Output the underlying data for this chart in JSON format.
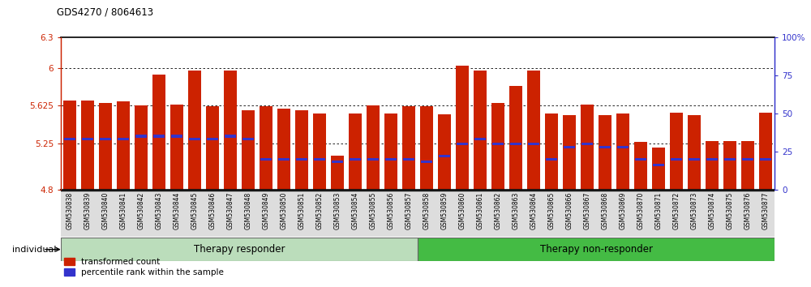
{
  "title": "GDS4270 / 8064613",
  "samples": [
    "GSM530838",
    "GSM530839",
    "GSM530840",
    "GSM530841",
    "GSM530842",
    "GSM530843",
    "GSM530844",
    "GSM530845",
    "GSM530846",
    "GSM530847",
    "GSM530848",
    "GSM530849",
    "GSM530850",
    "GSM530851",
    "GSM530852",
    "GSM530853",
    "GSM530854",
    "GSM530855",
    "GSM530856",
    "GSM530857",
    "GSM530858",
    "GSM530859",
    "GSM530860",
    "GSM530861",
    "GSM530862",
    "GSM530863",
    "GSM530864",
    "GSM530865",
    "GSM530866",
    "GSM530867",
    "GSM530868",
    "GSM530869",
    "GSM530870",
    "GSM530871",
    "GSM530872",
    "GSM530873",
    "GSM530874",
    "GSM530875",
    "GSM530876",
    "GSM530877"
  ],
  "red_values": [
    5.68,
    5.68,
    5.65,
    5.67,
    5.63,
    5.93,
    5.64,
    5.97,
    5.62,
    5.97,
    5.58,
    5.62,
    5.6,
    5.58,
    5.55,
    5.13,
    5.55,
    5.63,
    5.55,
    5.62,
    5.62,
    5.54,
    6.02,
    5.97,
    5.65,
    5.82,
    5.97,
    5.55,
    5.53,
    5.64,
    5.53,
    5.55,
    5.27,
    5.21,
    5.56,
    5.53,
    5.28,
    5.28,
    5.28,
    5.56
  ],
  "blue_pct": [
    33,
    33,
    33,
    33,
    35,
    35,
    35,
    33,
    33,
    35,
    33,
    20,
    20,
    20,
    20,
    18,
    20,
    20,
    20,
    20,
    18,
    22,
    30,
    33,
    30,
    30,
    30,
    20,
    28,
    30,
    28,
    28,
    20,
    16,
    20,
    20,
    20,
    20,
    20,
    20
  ],
  "therapy_responder_count": 20,
  "therapy_nonresponder_count": 20,
  "y_min": 4.8,
  "y_max": 6.3,
  "y_ticks": [
    4.8,
    5.25,
    5.625,
    6.0,
    6.3
  ],
  "y_tick_labels": [
    "4.8",
    "5.25",
    "5.625",
    "6",
    "6.3"
  ],
  "right_y_ticks": [
    0,
    25,
    50,
    75,
    100
  ],
  "right_y_labels": [
    "0",
    "25",
    "50",
    "75",
    "100%"
  ],
  "bar_color": "#CC2200",
  "blue_color": "#3333CC",
  "bg_color": "#FFFFFF",
  "responder_bg": "#BBDDBB",
  "nonresponder_bg": "#44BB44",
  "xtick_bg": "#DDDDDD"
}
